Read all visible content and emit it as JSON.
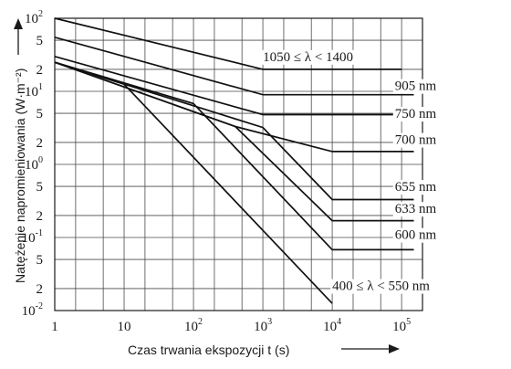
{
  "chart_data": {
    "type": "line",
    "title": "",
    "xlabel": "Czas trwania ekspozycji t (s)",
    "ylabel": "Natężenie napromieniowania (W·m⁻²)",
    "xscale": "log",
    "yscale": "log",
    "xlim": [
      1,
      200000
    ],
    "ylim": [
      0.01,
      100
    ],
    "grid": true,
    "x_ticks": [
      {
        "value": 1,
        "base": "1",
        "exp": ""
      },
      {
        "value": 10,
        "base": "10",
        "exp": ""
      },
      {
        "value": 100,
        "base": "10",
        "exp": "2"
      },
      {
        "value": 1000,
        "base": "10",
        "exp": "3"
      },
      {
        "value": 10000,
        "base": "10",
        "exp": "4"
      },
      {
        "value": 100000,
        "base": "10",
        "exp": "5"
      }
    ],
    "y_ticks": [
      {
        "value": 100,
        "base": "10",
        "exp": "2"
      },
      {
        "value": 50,
        "base": "5",
        "exp": ""
      },
      {
        "value": 20,
        "base": "2",
        "exp": ""
      },
      {
        "value": 10,
        "base": "10",
        "exp": "1"
      },
      {
        "value": 5,
        "base": "5",
        "exp": ""
      },
      {
        "value": 2,
        "base": "2",
        "exp": ""
      },
      {
        "value": 1,
        "base": "10",
        "exp": "0"
      },
      {
        "value": 0.5,
        "base": "5",
        "exp": ""
      },
      {
        "value": 0.2,
        "base": "2",
        "exp": ""
      },
      {
        "value": 0.1,
        "base": "10",
        "exp": "-1"
      },
      {
        "value": 0.05,
        "base": "5",
        "exp": ""
      },
      {
        "value": 0.02,
        "base": "2",
        "exp": ""
      },
      {
        "value": 0.01,
        "base": "10",
        "exp": "-2"
      }
    ],
    "series": [
      {
        "name": "1050 ≤ λ < 1400",
        "points": [
          [
            1,
            100
          ],
          [
            1000,
            20
          ],
          [
            100000,
            20
          ]
        ]
      },
      {
        "name": "905 nm",
        "points": [
          [
            1,
            55
          ],
          [
            1000,
            9
          ],
          [
            150000,
            9
          ]
        ]
      },
      {
        "name": "750 nm",
        "points": [
          [
            1,
            30
          ],
          [
            1000,
            4.8
          ],
          [
            150000,
            4.8
          ]
        ]
      },
      {
        "name": "700 nm",
        "points": [
          [
            1,
            25
          ],
          [
            400,
            3.3
          ],
          [
            10000,
            1.5
          ],
          [
            150000,
            1.5
          ]
        ]
      },
      {
        "name": "655 nm",
        "points": [
          [
            1,
            25
          ],
          [
            1000,
            3.2
          ],
          [
            10000,
            0.33
          ],
          [
            150000,
            0.33
          ]
        ]
      },
      {
        "name": "633 nm",
        "points": [
          [
            1,
            25
          ],
          [
            400,
            3.3
          ],
          [
            10000,
            0.17
          ],
          [
            150000,
            0.17
          ]
        ]
      },
      {
        "name": "600 nm",
        "points": [
          [
            1,
            25
          ],
          [
            100,
            6.8
          ],
          [
            10000,
            0.068
          ],
          [
            150000,
            0.068
          ]
        ]
      },
      {
        "name": "400 ≤ λ < 550 nm",
        "points": [
          [
            1,
            25
          ],
          [
            10,
            12.5
          ],
          [
            10000,
            0.0125
          ]
        ]
      }
    ],
    "series_label_anchor_x": [
      1000,
      80000,
      80000,
      80000,
      80000,
      80000,
      80000,
      10000
    ],
    "series_label_anchor_y": [
      30,
      12,
      5,
      2.2,
      0.5,
      0.25,
      0.11,
      0.022
    ]
  }
}
